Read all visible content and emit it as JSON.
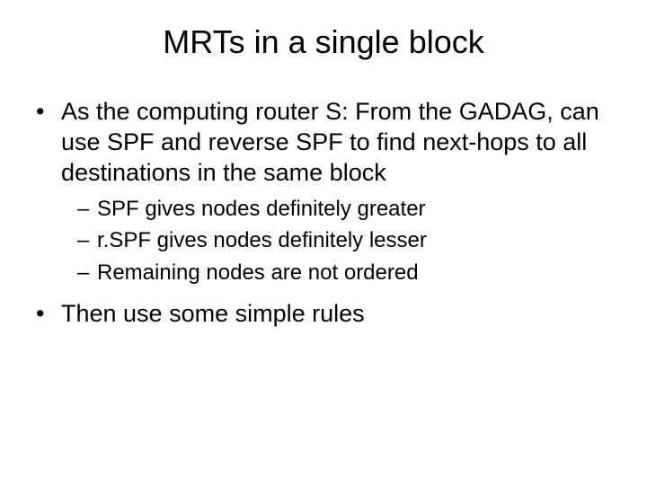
{
  "title": "MRTs in a single block",
  "bullets": {
    "b1": "As the computing router S:  From the GADAG, can use SPF and reverse SPF to find next-hops to all destinations in the same block",
    "b1_sub": {
      "s1": "SPF gives nodes definitely greater",
      "s2": "r.SPF gives nodes definitely lesser",
      "s3": "Remaining nodes are not ordered"
    },
    "b2": "Then use some simple rules"
  }
}
